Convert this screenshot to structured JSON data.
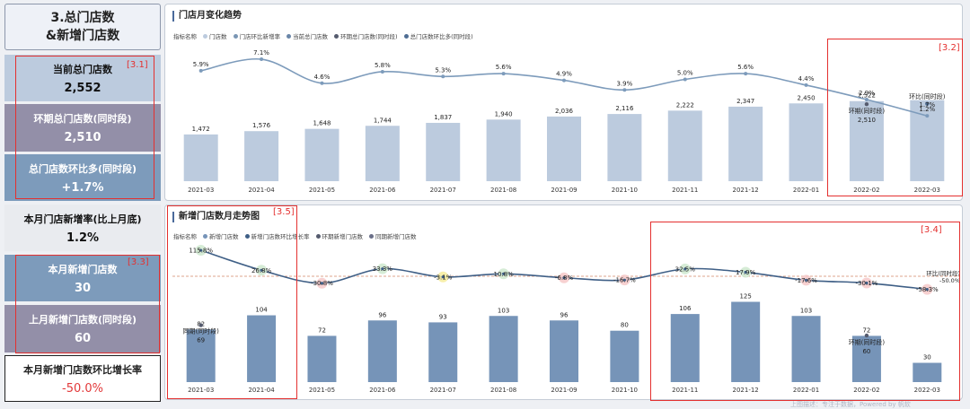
{
  "kpis": {
    "title_line1": "3.总门店数",
    "title_line2": "&新增门店数",
    "current_total_label": "当前总门店数",
    "current_total_value": "2,552",
    "ring_total_label": "环期总门店数(同时段)",
    "ring_total_value": "2,510",
    "total_compare_label": "总门店数环比多(同时段)",
    "total_compare_value": "+1.7%",
    "new_rate_label": "本月门店新增率(比上月底)",
    "new_rate_value": "1.2%",
    "new_stores_label": "本月新增门店数",
    "new_stores_value": "30",
    "last_new_label": "上月新增门店数(同时段)",
    "last_new_value": "60",
    "new_growth_label": "本月新增门店数环比增长率",
    "new_growth_value": "-50.0%"
  },
  "annotations": {
    "a31": "[3.1]",
    "a32": "[3.2]",
    "a33": "[3.3]",
    "a34": "[3.4]",
    "a35": "[3.5]"
  },
  "chart_data": [
    {
      "type": "bar",
      "title": "门店月变化趋势",
      "legend_prefix": "指标名称",
      "legend": [
        "门店数",
        "门店环比新增率",
        "当前总门店数",
        "环期总门店数(同时段)",
        "总门店数环比多(同时段)"
      ],
      "categories": [
        "2021-03",
        "2021-04",
        "2021-05",
        "2021-06",
        "2021-07",
        "2021-08",
        "2021-09",
        "2021-10",
        "2021-11",
        "2021-12",
        "2022-01",
        "2022-02",
        "2022-03"
      ],
      "bar_values": [
        1472,
        1576,
        1648,
        1744,
        1837,
        1940,
        2036,
        2116,
        2222,
        2347,
        2450,
        2522,
        2552
      ],
      "bar_labels": [
        "1,472",
        "1,576",
        "1,648",
        "1,744",
        "1,837",
        "1,940",
        "2,036",
        "2,116",
        "2,222",
        "2,347",
        "2,450",
        "2,522",
        ""
      ],
      "line_values": [
        5.9,
        7.1,
        4.6,
        5.8,
        5.3,
        5.6,
        4.9,
        3.9,
        5.0,
        5.6,
        4.4,
        2.9,
        1.2
      ],
      "line_labels": [
        "5.9%",
        "7.1%",
        "4.6%",
        "5.8%",
        "5.3%",
        "5.6%",
        "4.9%",
        "3.9%",
        "5.0%",
        "5.6%",
        "4.4%",
        "2.9%",
        "1.2%"
      ],
      "ring_marker": {
        "category": "2022-02",
        "value": 2510,
        "label": "环期(同时段)",
        "value_label": "2,510"
      },
      "compare_marker": {
        "category": "2022-03",
        "value": 1.7,
        "label": "环比(同时段)",
        "value_label": "1.7%"
      }
    },
    {
      "type": "bar",
      "title": "新增门店数月走势图",
      "legend_prefix": "指标名称",
      "legend": [
        "新增门店数",
        "新增门店数环比增长率",
        "环期新增门店数",
        "同期新增门店数"
      ],
      "categories": [
        "2021-03",
        "2021-04",
        "2021-05",
        "2021-06",
        "2021-07",
        "2021-08",
        "2021-09",
        "2021-10",
        "2021-11",
        "2021-12",
        "2022-01",
        "2022-02",
        "2022-03"
      ],
      "bar_values": [
        82,
        104,
        72,
        96,
        93,
        103,
        96,
        80,
        106,
        125,
        103,
        72,
        30
      ],
      "line_values": [
        115.8,
        26.8,
        -30.8,
        33.3,
        -3.1,
        10.8,
        -6.8,
        -16.7,
        32.5,
        17.9,
        -17.6,
        -30.1,
        -58.3
      ],
      "line_labels": [
        "115.8%",
        "26.8%",
        "-30.8%",
        "33.3%",
        "-3.1%",
        "10.8%",
        "-6.8%",
        "-16.7%",
        "32.5%",
        "17.9%",
        "-17.6%",
        "-30.1%",
        "-58.3%"
      ],
      "ref_line": {
        "label": "环比(同时段)",
        "value": "-50.0%"
      },
      "ring_marker": {
        "category": "2022-02",
        "value": 60,
        "label": "环期(同时段)"
      },
      "same_period_marker": {
        "category": "2021-03",
        "value": 69,
        "label": "同期(同时段)"
      }
    }
  ],
  "footer": "上图描述：专注于数据，Powered by 帆软"
}
